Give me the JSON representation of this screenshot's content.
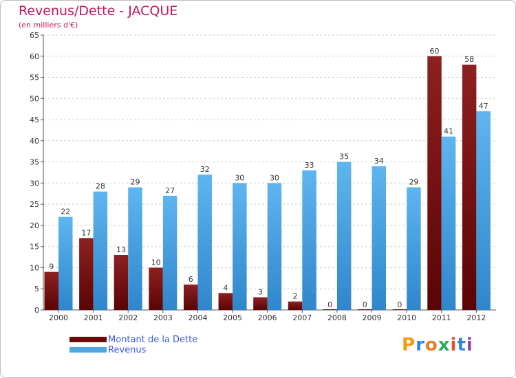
{
  "header": {
    "title": "Revenus/Dette - JACQUE",
    "subtitle": "(en milliers d'€)"
  },
  "chart_data": {
    "type": "bar",
    "title": "Revenus/Dette - JACQUE",
    "subtitle": "(en milliers d'€)",
    "categories": [
      "2000",
      "2001",
      "2002",
      "2003",
      "2004",
      "2005",
      "2006",
      "2007",
      "2008",
      "2009",
      "2010",
      "2011",
      "2012"
    ],
    "series": [
      {
        "name": "Montant de la Dette",
        "values": [
          9,
          17,
          13,
          10,
          6,
          4,
          3,
          2,
          0,
          0,
          0,
          60,
          58
        ],
        "color": "#7b1414"
      },
      {
        "name": "Revenus",
        "values": [
          22,
          28,
          29,
          27,
          32,
          30,
          30,
          33,
          35,
          34,
          29,
          41,
          47
        ],
        "color": "#4fa7e6"
      }
    ],
    "ylim": [
      0,
      65
    ],
    "yticks": [
      0,
      5,
      10,
      15,
      20,
      25,
      30,
      35,
      40,
      45,
      50,
      55,
      60,
      65
    ],
    "grid": "horizontal dashed",
    "legend": "bottom-left",
    "xlabel": "",
    "ylabel": ""
  },
  "legend": [
    {
      "label": "Montant de la Dette",
      "color": "#6b0a0a"
    },
    {
      "label": "Revenus",
      "color": "#4fa7e6"
    }
  ],
  "logo": {
    "text": "Proxiti",
    "letters": [
      "P",
      "r",
      "o",
      "x",
      "i",
      "t",
      "i"
    ],
    "colors": [
      "#f39c12",
      "#2e86de",
      "#e67e22",
      "#27ae60",
      "#e74c3c",
      "#2e86de",
      "#8e44ad"
    ]
  }
}
